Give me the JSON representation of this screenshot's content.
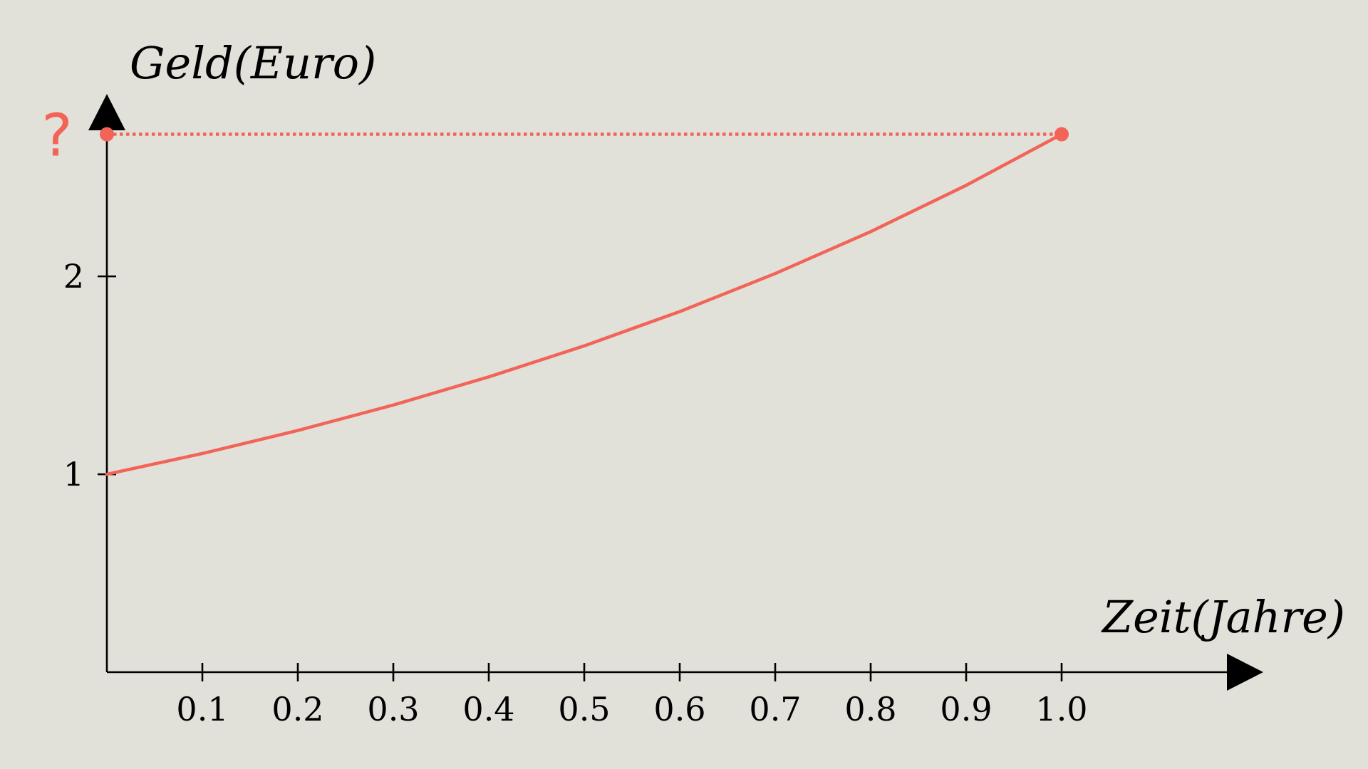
{
  "chart_data": {
    "type": "line",
    "xlabel": "Zeit(Jahre)",
    "ylabel": "Geld(Euro)",
    "xlim": [
      0,
      1.1
    ],
    "ylim": [
      0,
      2.72
    ],
    "x_ticks": [
      "0.1",
      "0.2",
      "0.3",
      "0.4",
      "0.5",
      "0.6",
      "0.7",
      "0.8",
      "0.9",
      "1.0"
    ],
    "y_ticks": [
      "1",
      "2"
    ],
    "series": [
      {
        "color": "#f26457",
        "x": [
          0,
          0.1,
          0.2,
          0.3,
          0.4,
          0.5,
          0.6,
          0.7,
          0.8,
          0.9,
          1.0
        ],
        "y": [
          1.0,
          1.105,
          1.221,
          1.35,
          1.492,
          1.649,
          1.822,
          2.014,
          2.226,
          2.46,
          2.718
        ]
      }
    ],
    "reference_line": {
      "style": "dotted",
      "color": "#f26457",
      "y": 2.718,
      "from_x": 0,
      "to_x": 1.0
    },
    "annotation": {
      "text": "?",
      "color": "#f26457"
    },
    "grid": false,
    "legend": "none"
  }
}
